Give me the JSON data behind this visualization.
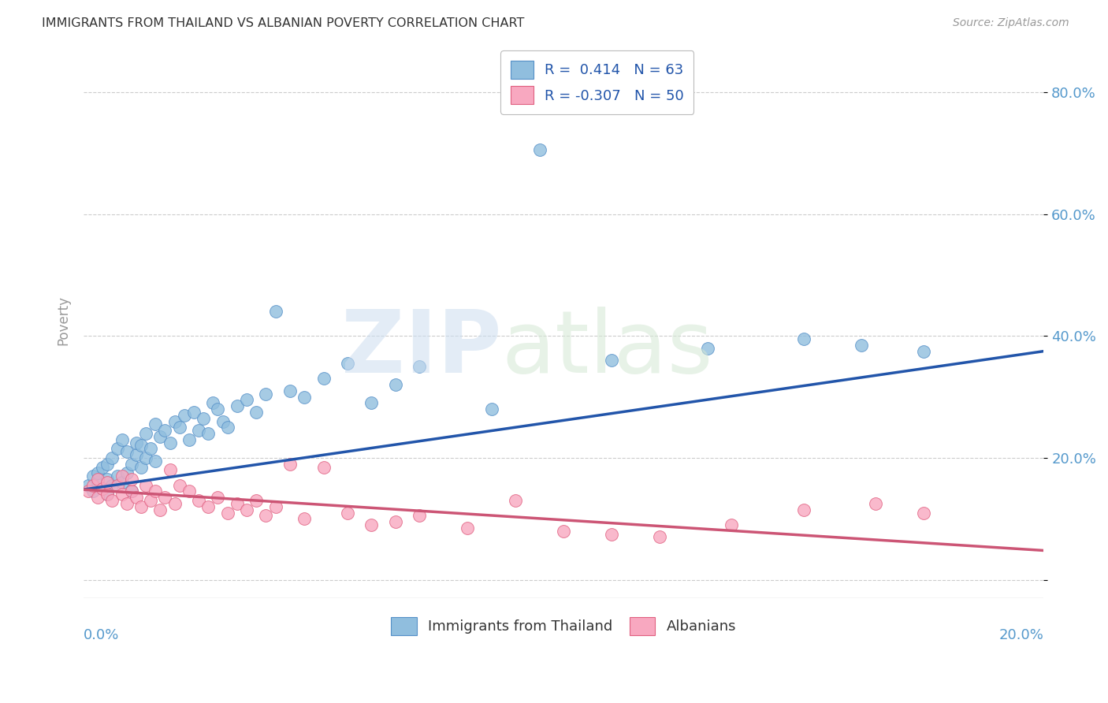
{
  "title": "IMMIGRANTS FROM THAILAND VS ALBANIAN POVERTY CORRELATION CHART",
  "source": "Source: ZipAtlas.com",
  "ylabel": "Poverty",
  "xlim": [
    0.0,
    0.2
  ],
  "ylim": [
    -0.03,
    0.88
  ],
  "ytick_vals": [
    0.0,
    0.2,
    0.4,
    0.6,
    0.8
  ],
  "ytick_labels": [
    "",
    "20.0%",
    "40.0%",
    "60.0%",
    "80.0%"
  ],
  "legend_entries": [
    {
      "label": "R =  0.414   N = 63",
      "color": "#a8c8e8"
    },
    {
      "label": "R = -0.307   N = 50",
      "color": "#f8b8cc"
    }
  ],
  "legend_bottom": [
    {
      "label": "Immigrants from Thailand",
      "color": "#a8c8e8"
    },
    {
      "label": "Albanians",
      "color": "#f8b8cc"
    }
  ],
  "background_color": "#ffffff",
  "grid_color": "#cccccc",
  "axis_label_color": "#5599cc",
  "scatter_blue_color": "#90bede",
  "scatter_blue_edge": "#5590c8",
  "scatter_pink_color": "#f8a8c0",
  "scatter_pink_edge": "#e06080",
  "line_blue_color": "#2255aa",
  "line_pink_color": "#cc5575",
  "blue_line_x0": 0.0,
  "blue_line_y0": 0.148,
  "blue_line_x1": 0.2,
  "blue_line_y1": 0.375,
  "pink_line_x0": 0.0,
  "pink_line_y0": 0.148,
  "pink_line_x1": 0.2,
  "pink_line_y1": 0.048,
  "blue_points_x": [
    0.001,
    0.002,
    0.002,
    0.003,
    0.003,
    0.004,
    0.004,
    0.005,
    0.005,
    0.005,
    0.006,
    0.006,
    0.007,
    0.007,
    0.008,
    0.008,
    0.009,
    0.009,
    0.01,
    0.01,
    0.011,
    0.011,
    0.012,
    0.012,
    0.013,
    0.013,
    0.014,
    0.015,
    0.015,
    0.016,
    0.017,
    0.018,
    0.019,
    0.02,
    0.021,
    0.022,
    0.023,
    0.024,
    0.025,
    0.026,
    0.027,
    0.028,
    0.029,
    0.03,
    0.032,
    0.034,
    0.036,
    0.038,
    0.04,
    0.043,
    0.046,
    0.05,
    0.055,
    0.06,
    0.065,
    0.07,
    0.085,
    0.095,
    0.11,
    0.13,
    0.15,
    0.162,
    0.175
  ],
  "blue_points_y": [
    0.155,
    0.145,
    0.17,
    0.16,
    0.175,
    0.15,
    0.185,
    0.14,
    0.165,
    0.19,
    0.155,
    0.2,
    0.17,
    0.215,
    0.16,
    0.23,
    0.175,
    0.21,
    0.145,
    0.19,
    0.205,
    0.225,
    0.185,
    0.22,
    0.24,
    0.2,
    0.215,
    0.195,
    0.255,
    0.235,
    0.245,
    0.225,
    0.26,
    0.25,
    0.27,
    0.23,
    0.275,
    0.245,
    0.265,
    0.24,
    0.29,
    0.28,
    0.26,
    0.25,
    0.285,
    0.295,
    0.275,
    0.305,
    0.44,
    0.31,
    0.3,
    0.33,
    0.355,
    0.29,
    0.32,
    0.35,
    0.28,
    0.705,
    0.36,
    0.38,
    0.395,
    0.385,
    0.375
  ],
  "pink_points_x": [
    0.001,
    0.002,
    0.003,
    0.003,
    0.004,
    0.005,
    0.005,
    0.006,
    0.007,
    0.008,
    0.008,
    0.009,
    0.01,
    0.01,
    0.011,
    0.012,
    0.013,
    0.014,
    0.015,
    0.016,
    0.017,
    0.018,
    0.019,
    0.02,
    0.022,
    0.024,
    0.026,
    0.028,
    0.03,
    0.032,
    0.034,
    0.036,
    0.038,
    0.04,
    0.043,
    0.046,
    0.05,
    0.055,
    0.06,
    0.065,
    0.07,
    0.08,
    0.09,
    0.1,
    0.11,
    0.12,
    0.135,
    0.15,
    0.165,
    0.175
  ],
  "pink_points_y": [
    0.145,
    0.155,
    0.135,
    0.165,
    0.15,
    0.14,
    0.16,
    0.13,
    0.155,
    0.14,
    0.17,
    0.125,
    0.145,
    0.165,
    0.135,
    0.12,
    0.155,
    0.13,
    0.145,
    0.115,
    0.135,
    0.18,
    0.125,
    0.155,
    0.145,
    0.13,
    0.12,
    0.135,
    0.11,
    0.125,
    0.115,
    0.13,
    0.105,
    0.12,
    0.19,
    0.1,
    0.185,
    0.11,
    0.09,
    0.095,
    0.105,
    0.085,
    0.13,
    0.08,
    0.075,
    0.07,
    0.09,
    0.115,
    0.125,
    0.11
  ]
}
